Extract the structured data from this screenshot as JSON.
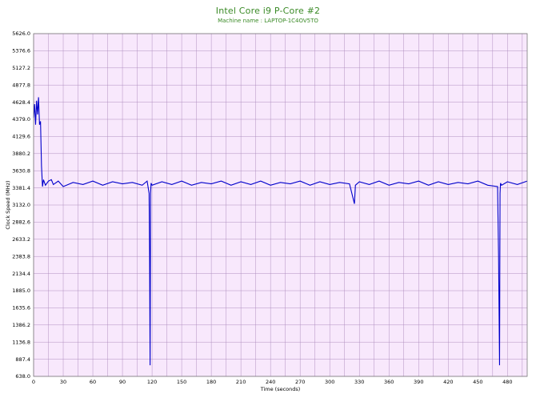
{
  "chart_data": {
    "type": "line",
    "title": "Intel Core i9 P-Core #2",
    "subtitle": "Machine name : LAPTOP-1C4OV5TO",
    "xlabel": "Time (seconds)",
    "ylabel": "Clock Speed (MHz)",
    "xlim": [
      0,
      500
    ],
    "ylim": [
      638.0,
      5626.0
    ],
    "x_ticks": [
      "0",
      "30",
      "60",
      "90",
      "120",
      "150",
      "180",
      "210",
      "240",
      "270",
      "300",
      "330",
      "360",
      "390",
      "420",
      "450",
      "480"
    ],
    "y_ticks": [
      "5626.0",
      "5376.6",
      "5127.2",
      "4877.8",
      "4628.4",
      "4379.0",
      "4129.6",
      "3880.2",
      "3630.8",
      "3381.4",
      "3132.0",
      "2882.6",
      "2633.2",
      "2383.8",
      "2134.4",
      "1885.0",
      "1635.6",
      "1386.2",
      "1136.8",
      "887.4",
      "638.0"
    ],
    "grid": true,
    "colors": {
      "line": "#0000cc",
      "plot_bg": "#f8e8fc",
      "grid": "#b08fc0",
      "title": "#3a8a26"
    },
    "series": [
      {
        "x": [
          0,
          1,
          2,
          3,
          4,
          5,
          6,
          7,
          8,
          9,
          10,
          12,
          15,
          18,
          20,
          25,
          30,
          40,
          50,
          60,
          70,
          80,
          90,
          100,
          110,
          115,
          117,
          117.5,
          118,
          118.5,
          119,
          120,
          130,
          140,
          150,
          160,
          170,
          180,
          190,
          200,
          210,
          220,
          230,
          240,
          250,
          260,
          270,
          280,
          290,
          300,
          310,
          320,
          325,
          326,
          330,
          340,
          350,
          360,
          370,
          380,
          390,
          400,
          410,
          420,
          430,
          440,
          450,
          460,
          470,
          471,
          471.5,
          472,
          472.5,
          473,
          474,
          480,
          490,
          500
        ],
        "values": [
          4400,
          4600,
          4300,
          4650,
          4450,
          4700,
          4300,
          4350,
          3700,
          3400,
          3500,
          3420,
          3480,
          3500,
          3430,
          3480,
          3400,
          3460,
          3430,
          3480,
          3420,
          3470,
          3440,
          3460,
          3420,
          3480,
          3300,
          2400,
          800,
          3300,
          3450,
          3420,
          3470,
          3430,
          3480,
          3420,
          3460,
          3440,
          3480,
          3420,
          3470,
          3430,
          3480,
          3420,
          3460,
          3440,
          3480,
          3420,
          3470,
          3430,
          3460,
          3440,
          3150,
          3420,
          3470,
          3430,
          3480,
          3420,
          3460,
          3440,
          3480,
          3420,
          3470,
          3430,
          3460,
          3440,
          3480,
          3420,
          3400,
          2400,
          1600,
          800,
          3300,
          3450,
          3420,
          3470,
          3430,
          3480
        ]
      }
    ]
  }
}
